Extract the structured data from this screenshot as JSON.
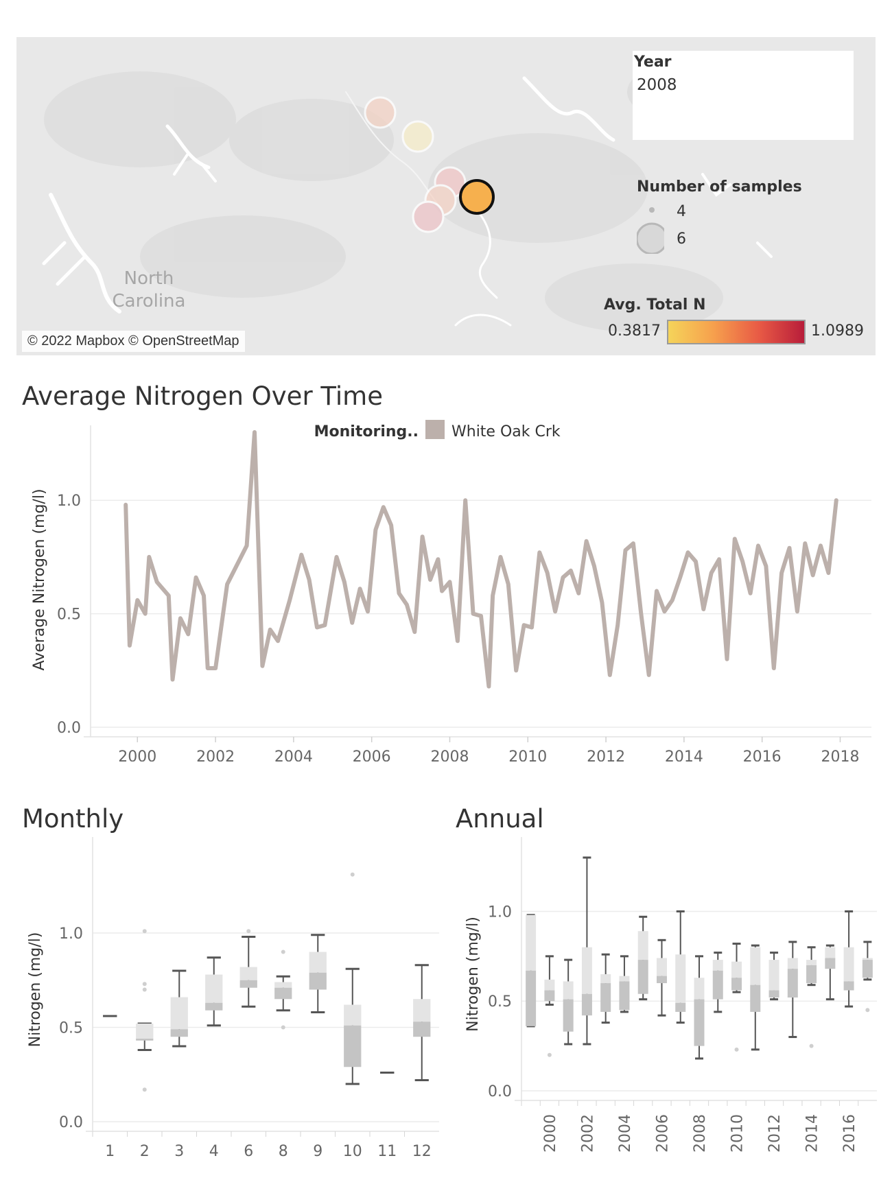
{
  "map": {
    "year_filter": {
      "title": "Year",
      "value": "2008"
    },
    "size_legend": {
      "title": "Number of samples",
      "items": [
        "4",
        "6"
      ]
    },
    "color_legend": {
      "title": "Avg. Total N",
      "min": "0.3817",
      "max": "1.0989",
      "colors": [
        "#f5d45a",
        "#f6a04d",
        "#e85a45",
        "#b81d3a"
      ]
    },
    "region_label_lines": [
      "North",
      "Carolina"
    ],
    "attribution": "© 2022 Mapbox © OpenStreetMap",
    "selected_marker_color": "#f6b04e"
  },
  "line_chart": {
    "title": "Average Nitrogen Over Time",
    "chart_data": {
      "type": "line",
      "ylabel": "Average Nitrogen (mg/l)",
      "ylim": [
        0,
        1.3
      ],
      "xlim": [
        1998.8,
        2018.8
      ],
      "yticks": [
        "0.0",
        "0.5",
        "1.0"
      ],
      "xticks": [
        "2000",
        "2002",
        "2004",
        "2006",
        "2008",
        "2010",
        "2012",
        "2014",
        "2016",
        "2018"
      ],
      "legend": {
        "title": "Monitoring..",
        "placement": "top-center"
      },
      "series": [
        {
          "name": "White Oak Crk",
          "color": "#bcb0ab",
          "x": [
            1999.7,
            1999.8,
            2000.0,
            2000.2,
            2000.3,
            2000.5,
            2000.8,
            2000.9,
            2001.1,
            2001.3,
            2001.5,
            2001.7,
            2001.8,
            2002.0,
            2002.3,
            2002.8,
            2003.0,
            2003.2,
            2003.4,
            2003.6,
            2003.9,
            2004.2,
            2004.4,
            2004.6,
            2004.8,
            2005.1,
            2005.3,
            2005.5,
            2005.7,
            2005.9,
            2006.1,
            2006.3,
            2006.5,
            2006.7,
            2006.9,
            2007.1,
            2007.3,
            2007.5,
            2007.7,
            2007.8,
            2008.0,
            2008.2,
            2008.4,
            2008.6,
            2008.8,
            2009.0,
            2009.1,
            2009.3,
            2009.5,
            2009.7,
            2009.9,
            2010.1,
            2010.3,
            2010.5,
            2010.7,
            2010.9,
            2011.1,
            2011.3,
            2011.5,
            2011.7,
            2011.9,
            2012.1,
            2012.3,
            2012.5,
            2012.7,
            2012.9,
            2013.1,
            2013.3,
            2013.5,
            2013.7,
            2013.9,
            2014.1,
            2014.3,
            2014.5,
            2014.7,
            2014.9,
            2015.1,
            2015.3,
            2015.5,
            2015.7,
            2015.9,
            2016.1,
            2016.3,
            2016.5,
            2016.7,
            2016.9,
            2017.1,
            2017.3,
            2017.5,
            2017.7,
            2017.9
          ],
          "values": [
            0.98,
            0.36,
            0.56,
            0.5,
            0.75,
            0.64,
            0.58,
            0.21,
            0.48,
            0.41,
            0.66,
            0.58,
            0.26,
            0.26,
            0.63,
            0.8,
            1.3,
            0.27,
            0.43,
            0.38,
            0.56,
            0.76,
            0.65,
            0.44,
            0.45,
            0.75,
            0.64,
            0.46,
            0.61,
            0.51,
            0.87,
            0.97,
            0.89,
            0.59,
            0.54,
            0.42,
            0.84,
            0.65,
            0.74,
            0.6,
            0.64,
            0.38,
            1.0,
            0.5,
            0.49,
            0.18,
            0.58,
            0.75,
            0.63,
            0.25,
            0.45,
            0.44,
            0.77,
            0.68,
            0.51,
            0.66,
            0.69,
            0.59,
            0.82,
            0.71,
            0.55,
            0.23,
            0.45,
            0.78,
            0.81,
            0.5,
            0.23,
            0.6,
            0.51,
            0.56,
            0.66,
            0.77,
            0.73,
            0.52,
            0.68,
            0.74,
            0.3,
            0.83,
            0.73,
            0.59,
            0.8,
            0.71,
            0.26,
            0.68,
            0.79,
            0.51,
            0.81,
            0.67,
            0.8,
            0.68,
            1.0
          ]
        }
      ]
    }
  },
  "monthly_chart": {
    "title": "Monthly",
    "chart_data": {
      "type": "box",
      "ylabel": "Nitrogen (mg/l)",
      "ylim": [
        0,
        1.4
      ],
      "yticks": [
        "0.0",
        "0.5",
        "1.0"
      ],
      "categories": [
        "1",
        "2",
        "3",
        "4",
        "6",
        "8",
        "9",
        "10",
        "11",
        "12"
      ],
      "boxes": [
        {
          "min": 0.56,
          "q1": 0.56,
          "median": 0.56,
          "q3": 0.56,
          "max": 0.56
        },
        {
          "min": 0.38,
          "q1": 0.43,
          "median": 0.44,
          "q3": 0.52,
          "max": 0.52
        },
        {
          "min": 0.4,
          "q1": 0.45,
          "median": 0.49,
          "q3": 0.66,
          "max": 0.8
        },
        {
          "min": 0.51,
          "q1": 0.59,
          "median": 0.63,
          "q3": 0.78,
          "max": 0.87
        },
        {
          "min": 0.61,
          "q1": 0.71,
          "median": 0.75,
          "q3": 0.82,
          "max": 0.98
        },
        {
          "min": 0.59,
          "q1": 0.65,
          "median": 0.71,
          "q3": 0.74,
          "max": 0.77
        },
        {
          "min": 0.58,
          "q1": 0.7,
          "median": 0.79,
          "q3": 0.9,
          "max": 0.99
        },
        {
          "min": 0.2,
          "q1": 0.29,
          "median": 0.51,
          "q3": 0.62,
          "max": 0.81
        },
        {
          "min": 0.26,
          "q1": 0.26,
          "median": 0.26,
          "q3": 0.26,
          "max": 0.26
        },
        {
          "min": 0.22,
          "q1": 0.45,
          "median": 0.53,
          "q3": 0.65,
          "max": 0.83
        }
      ],
      "outliers": [
        {
          "category": "2",
          "value": 1.01
        },
        {
          "category": "2",
          "value": 0.73
        },
        {
          "category": "2",
          "value": 0.7
        },
        {
          "category": "2",
          "value": 0.17
        },
        {
          "category": "6",
          "value": 1.01
        },
        {
          "category": "8",
          "value": 0.9
        },
        {
          "category": "8",
          "value": 0.5
        },
        {
          "category": "10",
          "value": 1.31
        }
      ]
    }
  },
  "annual_chart": {
    "title": "Annual",
    "chart_data": {
      "type": "box",
      "ylabel": "Nitrogen (mg/l)",
      "ylim": [
        0,
        1.3
      ],
      "yticks": [
        "0.0",
        "0.5",
        "1.0"
      ],
      "xticks": [
        "2000",
        "2002",
        "2004",
        "2006",
        "2008",
        "2010",
        "2012",
        "2014",
        "2016"
      ],
      "categories": [
        1999,
        2000,
        2001,
        2002,
        2003,
        2004,
        2005,
        2006,
        2007,
        2008,
        2009,
        2010,
        2011,
        2012,
        2013,
        2014,
        2015,
        2016,
        2017
      ],
      "boxes": [
        {
          "min": 0.36,
          "q1": 0.36,
          "median": 0.67,
          "q3": 0.98,
          "max": 0.98
        },
        {
          "min": 0.48,
          "q1": 0.5,
          "median": 0.56,
          "q3": 0.62,
          "max": 0.75
        },
        {
          "min": 0.26,
          "q1": 0.33,
          "median": 0.51,
          "q3": 0.61,
          "max": 0.73
        },
        {
          "min": 0.26,
          "q1": 0.42,
          "median": 0.54,
          "q3": 0.8,
          "max": 1.3
        },
        {
          "min": 0.38,
          "q1": 0.44,
          "median": 0.6,
          "q3": 0.65,
          "max": 0.76
        },
        {
          "min": 0.44,
          "q1": 0.45,
          "median": 0.61,
          "q3": 0.64,
          "max": 0.75
        },
        {
          "min": 0.51,
          "q1": 0.54,
          "median": 0.73,
          "q3": 0.89,
          "max": 0.97
        },
        {
          "min": 0.42,
          "q1": 0.6,
          "median": 0.64,
          "q3": 0.74,
          "max": 0.84
        },
        {
          "min": 0.38,
          "q1": 0.44,
          "median": 0.49,
          "q3": 0.76,
          "max": 1.0
        },
        {
          "min": 0.18,
          "q1": 0.25,
          "median": 0.51,
          "q3": 0.63,
          "max": 0.75
        },
        {
          "min": 0.44,
          "q1": 0.51,
          "median": 0.67,
          "q3": 0.73,
          "max": 0.77
        },
        {
          "min": 0.55,
          "q1": 0.56,
          "median": 0.63,
          "q3": 0.72,
          "max": 0.82
        },
        {
          "min": 0.23,
          "q1": 0.44,
          "median": 0.59,
          "q3": 0.8,
          "max": 0.81
        },
        {
          "min": 0.51,
          "q1": 0.52,
          "median": 0.56,
          "q3": 0.73,
          "max": 0.77
        },
        {
          "min": 0.3,
          "q1": 0.52,
          "median": 0.68,
          "q3": 0.74,
          "max": 0.83
        },
        {
          "min": 0.59,
          "q1": 0.6,
          "median": 0.7,
          "q3": 0.73,
          "max": 0.8
        },
        {
          "min": 0.51,
          "q1": 0.68,
          "median": 0.74,
          "q3": 0.8,
          "max": 0.81
        },
        {
          "min": 0.47,
          "q1": 0.56,
          "median": 0.61,
          "q3": 0.8,
          "max": 1.0
        },
        {
          "min": 0.62,
          "q1": 0.63,
          "median": 0.73,
          "q3": 0.74,
          "max": 0.83
        }
      ],
      "outliers": [
        {
          "category": 2000,
          "value": 0.2
        },
        {
          "category": 2010,
          "value": 0.23
        },
        {
          "category": 2014,
          "value": 0.25
        },
        {
          "category": 2017,
          "value": 0.45
        }
      ]
    }
  }
}
